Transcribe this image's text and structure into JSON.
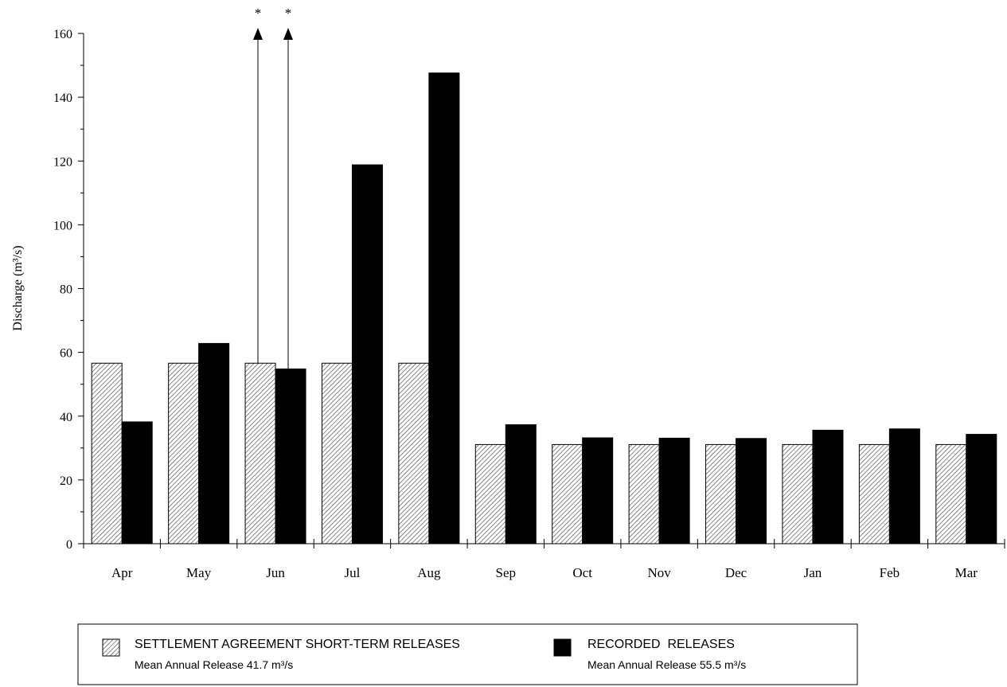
{
  "chart_data": {
    "type": "bar",
    "title": "",
    "xlabel": "",
    "ylabel": "Discharge (m³/s)",
    "ylim": [
      0,
      160
    ],
    "yticks": [
      "0",
      "20",
      "40",
      "60",
      "80",
      "100",
      "120",
      "140",
      "160"
    ],
    "categories": [
      "Apr",
      "May",
      "Jun",
      "Jul",
      "Aug",
      "Sep",
      "Oct",
      "Nov",
      "Dec",
      "Jan",
      "Feb",
      "Mar"
    ],
    "series": [
      {
        "name": "SETTLEMENT AGREEMENT SHORT-TERM RELEASES",
        "pattern": "hatched",
        "color": "#d9d9d9",
        "values": [
          56.6,
          56.6,
          56.6,
          56.6,
          56.6,
          31.1,
          31.1,
          31.1,
          31.1,
          31.1,
          31.1,
          31.1
        ]
      },
      {
        "name": "RECORDED RELEASES",
        "pattern": "solid",
        "color": "#000000",
        "values": [
          38.2,
          62.8,
          54.8,
          118.8,
          147.6,
          37.3,
          33.2,
          33.1,
          33.0,
          35.6,
          36.0,
          34.3
        ]
      }
    ],
    "annotations": [
      {
        "category": "Jun",
        "series": 0,
        "marker": "*",
        "note": "arrow extends above axis"
      },
      {
        "category": "Jun",
        "series": 1,
        "marker": "*",
        "note": "arrow extends above axis"
      }
    ],
    "legend": {
      "placement": "bottom",
      "items": [
        {
          "label": "SETTLEMENT AGREEMENT SHORT-TERM RELEASES",
          "sublabel": "Mean Annual Release 41.7 m³/s"
        },
        {
          "label": "RECORDED  RELEASES",
          "sublabel": "Mean Annual Release 55.5 m³/s"
        }
      ]
    },
    "grid": false
  }
}
